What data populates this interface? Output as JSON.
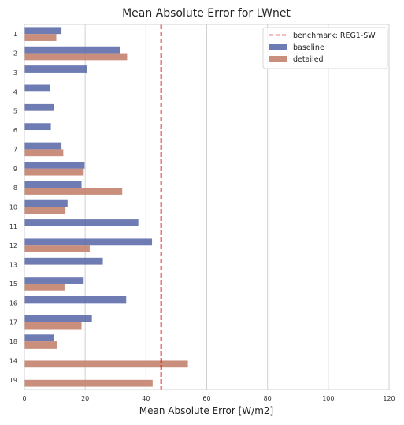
{
  "chart_data": {
    "type": "bar",
    "orientation": "horizontal",
    "title": "Mean Absolute Error for LWnet",
    "xlabel": "Mean Absolute Error [W/m2]",
    "ylabel": "",
    "xlim": [
      0,
      120
    ],
    "xticks": [
      0,
      20,
      40,
      60,
      80,
      100,
      120
    ],
    "grid": "vertical",
    "legend_position": "top-right",
    "categories": [
      "1",
      "2",
      "3",
      "4",
      "5",
      "6",
      "7",
      "9",
      "8",
      "10",
      "11",
      "12",
      "13",
      "15",
      "16",
      "17",
      "18",
      "14",
      "19"
    ],
    "series": [
      {
        "name": "baseline",
        "color": "#5a6aa8",
        "values": [
          12.2,
          31.5,
          20.5,
          8.5,
          9.6,
          8.7,
          12.2,
          19.8,
          18.8,
          14.2,
          37.5,
          42.0,
          25.8,
          19.5,
          33.5,
          22.2,
          9.6,
          null,
          null
        ]
      },
      {
        "name": "detailed",
        "color": "#c1806a",
        "values": [
          10.5,
          33.8,
          null,
          null,
          null,
          null,
          12.8,
          19.5,
          32.2,
          13.5,
          null,
          21.5,
          null,
          13.2,
          null,
          18.8,
          10.8,
          53.8,
          42.2
        ]
      }
    ],
    "reference_line": {
      "name": "benchmark: REG1-SW",
      "value": 45,
      "color": "#dd0000",
      "style": "dashed"
    }
  }
}
